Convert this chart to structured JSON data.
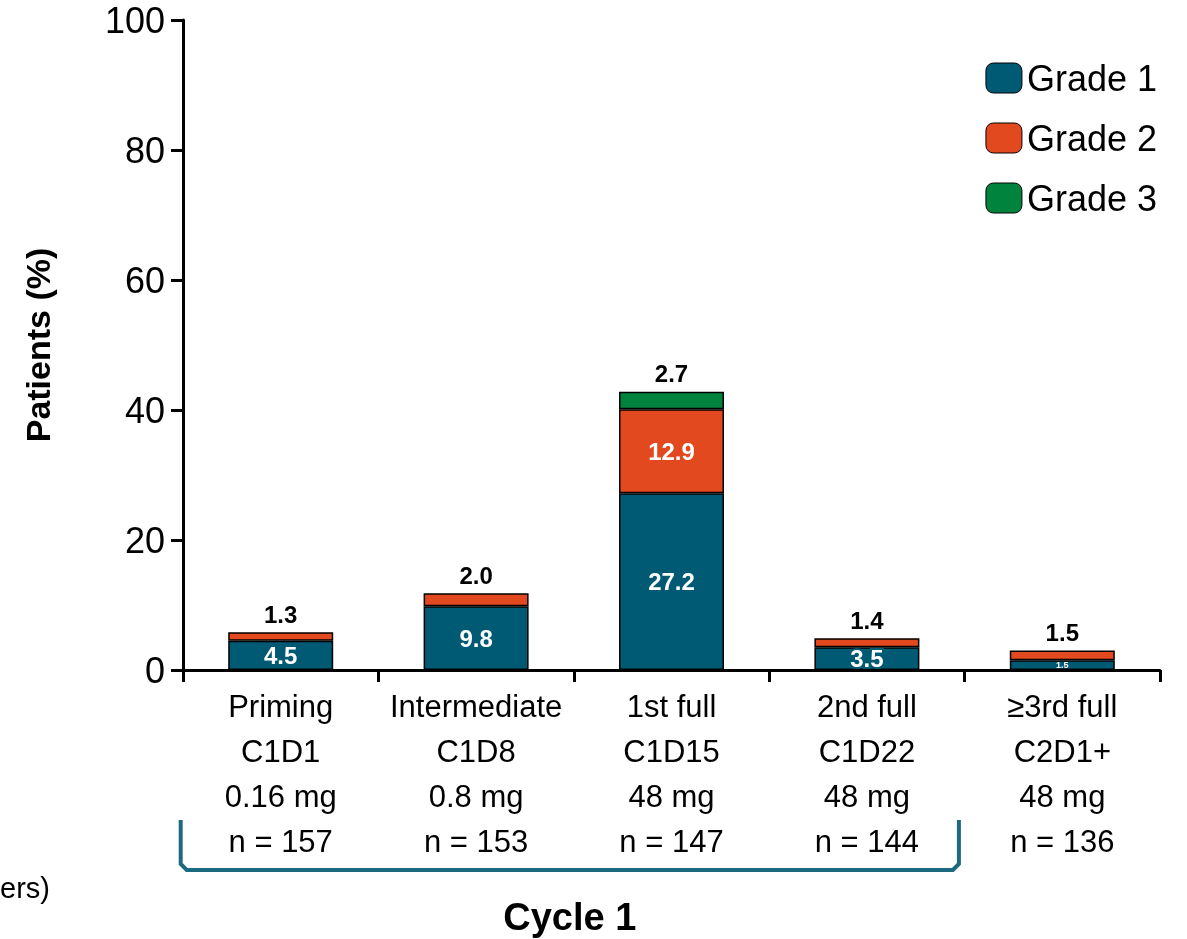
{
  "chart_data": {
    "type": "bar",
    "stacked": true,
    "ylabel": "Patients (%)",
    "xlabel": "Cycle 1",
    "categories": [
      "Priming\nC1D1\n0.16 mg\nn = 157",
      "Intermediate\nC1D8\n0.8 mg\nn = 153",
      "1st full\nC1D15\n48 mg\nn = 147",
      "2nd full\nC1D22\n48 mg\nn = 144",
      "≥3rd full\nC2D1+\n48 mg\nn = 136"
    ],
    "series": [
      {
        "name": "Grade 1",
        "color": "#005a73",
        "values": [
          4.5,
          9.8,
          27.2,
          3.5,
          1.5
        ],
        "value_labels": [
          "4.5",
          "9.8",
          "27.2",
          "3.5",
          "1.5"
        ]
      },
      {
        "name": "Grade 2",
        "color": "#e2491f",
        "values": [
          1.3,
          2.0,
          12.9,
          1.4,
          1.5
        ],
        "value_labels": [
          "1.3",
          "2.0",
          "12.9",
          "1.4",
          "1.5"
        ]
      },
      {
        "name": "Grade 3",
        "color": "#00843d",
        "values": [
          null,
          null,
          2.7,
          null,
          null
        ],
        "value_labels": [
          null,
          null,
          "2.7",
          null,
          null
        ]
      }
    ],
    "ylim": [
      0,
      100
    ],
    "yticks": [
      0,
      20,
      40,
      60,
      80,
      100
    ],
    "legend": "top right",
    "grid": false,
    "annotations": [
      "ers)"
    ]
  }
}
